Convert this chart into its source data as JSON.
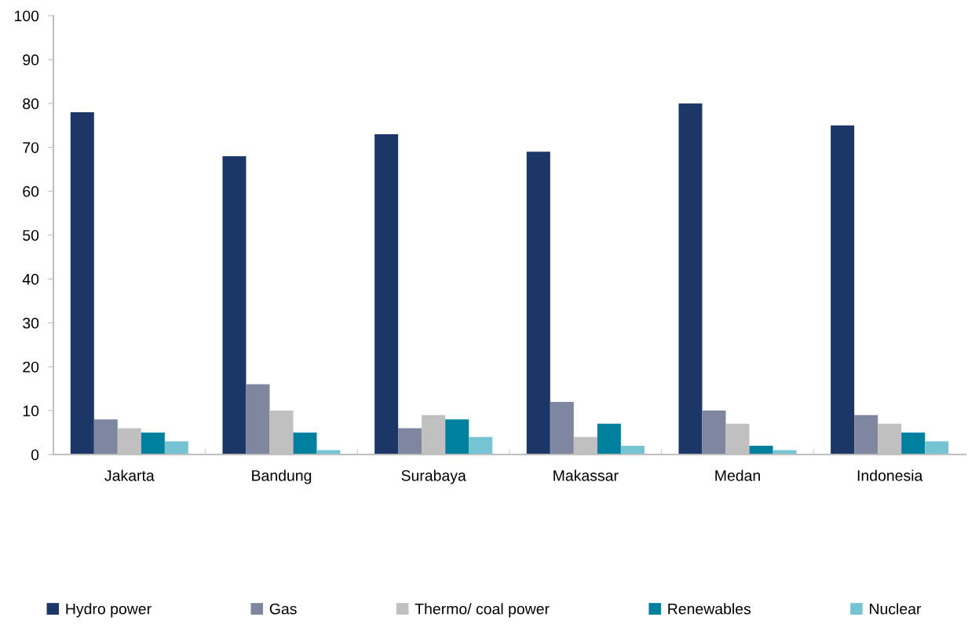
{
  "chart_data": {
    "type": "bar",
    "categories": [
      "Jakarta",
      "Bandung",
      "Surabaya",
      "Makassar",
      "Medan",
      "Indonesia"
    ],
    "series": [
      {
        "name": "Hydro power",
        "color": "#1c3668",
        "values": [
          78,
          68,
          73,
          69,
          80,
          75
        ]
      },
      {
        "name": "Gas",
        "color": "#7f86a0",
        "values": [
          8,
          16,
          6,
          12,
          10,
          9
        ]
      },
      {
        "name": "Thermo/ coal power",
        "color": "#c0c0c0",
        "values": [
          6,
          10,
          9,
          4,
          7,
          7
        ]
      },
      {
        "name": "Renewables",
        "color": "#00809f",
        "values": [
          5,
          5,
          8,
          7,
          2,
          5
        ]
      },
      {
        "name": "Nuclear",
        "color": "#74c4d4",
        "values": [
          3,
          1,
          4,
          2,
          1,
          3
        ]
      }
    ],
    "ylim": [
      0,
      100
    ],
    "yticks": [
      0,
      10,
      20,
      30,
      40,
      50,
      60,
      70,
      80,
      90,
      100
    ],
    "grid": false,
    "legend": "bottom"
  }
}
